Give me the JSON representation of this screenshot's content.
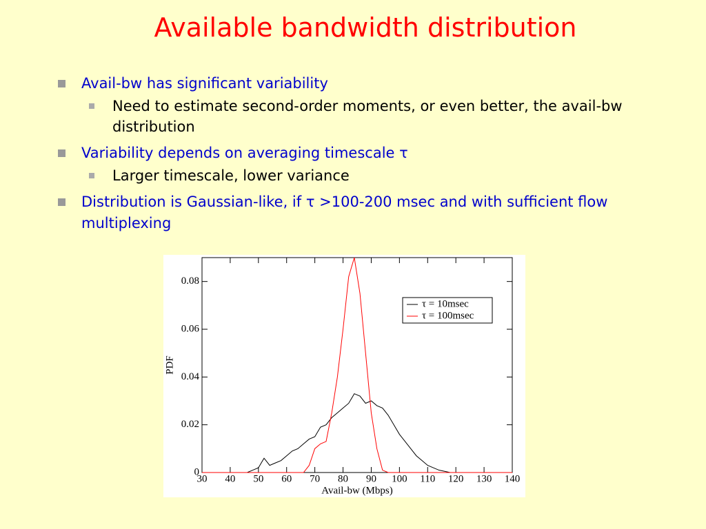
{
  "slide": {
    "title": "Available bandwidth distribution",
    "bullets": [
      {
        "text": "Avail-bw has significant variability",
        "sub": [
          "Need to estimate second-order moments, or even better, the avail-bw distribution"
        ]
      },
      {
        "text": "Variability depends on averaging timescale τ",
        "sub": [
          "Larger timescale, lower variance"
        ]
      },
      {
        "text": "Distribution is Gaussian-like, if τ >100-200 msec and with sufficient flow multiplexing",
        "sub": []
      }
    ]
  },
  "chart_data": {
    "type": "line",
    "xlabel": "Avail-bw (Mbps)",
    "ylabel": "PDF",
    "x": [
      30,
      32,
      34,
      36,
      38,
      40,
      42,
      44,
      46,
      48,
      50,
      52,
      54,
      56,
      58,
      60,
      62,
      64,
      66,
      68,
      70,
      72,
      74,
      76,
      78,
      80,
      82,
      84,
      86,
      88,
      90,
      92,
      94,
      96,
      98,
      100,
      102,
      104,
      106,
      108,
      110,
      112,
      114,
      116,
      118,
      120,
      122,
      124,
      126,
      128,
      130,
      132,
      134,
      136,
      138,
      140
    ],
    "series": [
      {
        "name": "τ = 10msec",
        "color": "#000000",
        "values": [
          0,
          0,
          0,
          0,
          0,
          0,
          0,
          0,
          0,
          0.001,
          0.002,
          0.006,
          0.003,
          0.004,
          0.005,
          0.007,
          0.009,
          0.01,
          0.012,
          0.014,
          0.015,
          0.019,
          0.02,
          0.023,
          0.025,
          0.027,
          0.029,
          0.033,
          0.032,
          0.029,
          0.03,
          0.028,
          0.027,
          0.024,
          0.02,
          0.016,
          0.013,
          0.01,
          0.007,
          0.005,
          0.003,
          0.002,
          0.001,
          0.0005,
          0,
          0,
          0,
          0,
          0,
          0,
          0,
          0,
          0,
          0,
          0,
          0
        ]
      },
      {
        "name": "τ = 100msec",
        "color": "#ff0000",
        "values": [
          0,
          0,
          0,
          0,
          0,
          0,
          0,
          0,
          0,
          0,
          0,
          0,
          0,
          0,
          0,
          0,
          0,
          0,
          0,
          0.003,
          0.01,
          0.012,
          0.013,
          0.025,
          0.04,
          0.06,
          0.082,
          0.09,
          0.075,
          0.05,
          0.025,
          0.01,
          0.001,
          0,
          0,
          0,
          0,
          0,
          0,
          0,
          0,
          0,
          0,
          0,
          0,
          0,
          0,
          0,
          0,
          0,
          0,
          0,
          0,
          0,
          0,
          0
        ]
      }
    ],
    "xlim": [
      30,
      140
    ],
    "xticks": [
      30,
      40,
      50,
      60,
      70,
      80,
      90,
      100,
      110,
      120,
      130,
      140
    ],
    "ylim": [
      0,
      0.09
    ],
    "yticks": [
      0,
      0.02,
      0.04,
      0.06,
      0.08
    ],
    "legend": "upper right"
  }
}
